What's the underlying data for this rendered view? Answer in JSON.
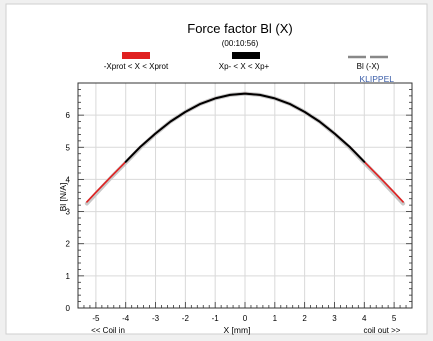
{
  "window": {
    "background": "#f0f0f0",
    "panel_background": "#ffffff"
  },
  "chart_data": {
    "type": "line",
    "title": "Force factor Bl (X)",
    "subtitle": "(00:10:56)",
    "xlabel": "X [mm]",
    "ylabel": "Bl [N/A]",
    "x_left_note": "<< Coil in",
    "x_right_note": "coil out >>",
    "brand": "KLIPPEL",
    "xlim": [
      -5.6,
      5.6
    ],
    "ylim": [
      0,
      7
    ],
    "x_ticks": [
      -5,
      -4,
      -3,
      -2,
      -1,
      0,
      1,
      2,
      3,
      4,
      5
    ],
    "y_ticks": [
      0,
      1,
      2,
      3,
      4,
      5,
      6
    ],
    "grid": true,
    "legend_position": "top",
    "legend": [
      {
        "label": "-Xprot < X < Xprot",
        "color": "#e02020"
      },
      {
        "label": "Xp- < X < Xp+",
        "color": "#000000"
      },
      {
        "label": "Bl (-X)",
        "color": "#888888",
        "dashed": true
      }
    ],
    "series": [
      {
        "name": "Bl (-X)",
        "color": "#c8c8c8",
        "x": [
          -5.3,
          -5.0,
          -4.5,
          -4.0,
          -3.5,
          -3.0,
          -2.5,
          -2.0,
          -1.5,
          -1.0,
          -0.5,
          0.0,
          0.5,
          1.0,
          1.5,
          2.0,
          2.5,
          3.0,
          3.5,
          4.0,
          4.5,
          5.0,
          5.3
        ],
        "y": [
          3.25,
          3.55,
          4.05,
          4.52,
          5.0,
          5.42,
          5.8,
          6.1,
          6.35,
          6.52,
          6.63,
          6.67,
          6.63,
          6.52,
          6.35,
          6.1,
          5.8,
          5.42,
          5.0,
          4.52,
          4.05,
          3.55,
          3.25
        ]
      },
      {
        "name": "-Xprot < X < Xprot",
        "color": "#e02020",
        "x": [
          -5.3,
          -5.0,
          -4.5,
          -4.0,
          -3.5,
          -3.0,
          -2.5,
          -2.0,
          -1.5,
          -1.0,
          -0.5,
          0.0,
          0.5,
          1.0,
          1.5,
          2.0,
          2.5,
          3.0,
          3.5,
          4.0,
          4.5,
          5.0,
          5.3
        ],
        "y": [
          3.3,
          3.6,
          4.08,
          4.55,
          5.02,
          5.43,
          5.8,
          6.1,
          6.35,
          6.52,
          6.63,
          6.67,
          6.63,
          6.52,
          6.35,
          6.1,
          5.8,
          5.43,
          5.02,
          4.55,
          4.08,
          3.6,
          3.3
        ]
      },
      {
        "name": "Xp- < X < Xp+",
        "color": "#000000",
        "x": [
          -4.0,
          -3.5,
          -3.0,
          -2.5,
          -2.0,
          -1.5,
          -1.0,
          -0.5,
          0.0,
          0.5,
          1.0,
          1.5,
          2.0,
          2.5,
          3.0,
          3.5,
          4.0
        ],
        "y": [
          4.55,
          5.02,
          5.43,
          5.8,
          6.1,
          6.35,
          6.52,
          6.63,
          6.67,
          6.63,
          6.52,
          6.35,
          6.1,
          5.8,
          5.43,
          5.02,
          4.55
        ]
      }
    ]
  }
}
